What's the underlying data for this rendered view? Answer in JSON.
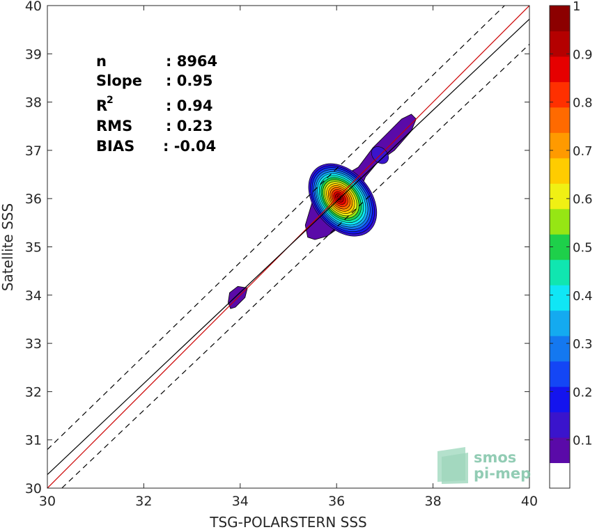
{
  "chart_data": {
    "type": "scatter",
    "subtype": "density-contour",
    "xlabel": "TSG-POLARSTERN SSS",
    "ylabel": "Satellite SSS",
    "xlim": [
      30,
      40
    ],
    "ylim": [
      30,
      40
    ],
    "xticks": [
      30,
      32,
      34,
      36,
      38,
      40
    ],
    "yticks": [
      30,
      31,
      32,
      33,
      34,
      35,
      36,
      37,
      38,
      39,
      40
    ],
    "grid": false,
    "stats": [
      {
        "label": "n",
        "value": ": 8964"
      },
      {
        "label": "Slope",
        "value": ": 0.95"
      },
      {
        "label": "R",
        "sup": "2",
        "value": ": 0.94"
      },
      {
        "label": "RMS",
        "value": ": 0.23"
      },
      {
        "label": "BIAS",
        "value": ": -0.04"
      }
    ],
    "lines": [
      {
        "name": "one-to-one",
        "color": "#cc0000",
        "style": "solid",
        "x": [
          30,
          40
        ],
        "y": [
          30,
          40
        ]
      },
      {
        "name": "regression",
        "color": "#000000",
        "style": "solid",
        "x": [
          30,
          40
        ],
        "y": [
          30.28,
          39.72
        ]
      },
      {
        "name": "upper-bound",
        "color": "#000000",
        "style": "dashed",
        "x": [
          30,
          40
        ],
        "y": [
          30.8,
          40.5
        ]
      },
      {
        "name": "lower-bound",
        "color": "#000000",
        "style": "dashed",
        "x": [
          30.3,
          40
        ],
        "y": [
          30,
          39.2
        ]
      }
    ],
    "density_peak": {
      "x": 36.05,
      "y": 36.02
    },
    "colorbar": {
      "ticks": [
        0.1,
        0.2,
        0.3,
        0.4,
        0.5,
        0.6,
        0.7,
        0.8,
        0.9,
        1
      ],
      "tick_labels": [
        "0.1",
        "0.2",
        "0.3",
        "0.4",
        "0.5",
        "0.6",
        "0.7",
        "0.8",
        "0.9",
        "1"
      ],
      "range": [
        0,
        1
      ],
      "colors": [
        "#ffffff",
        "#5a0aa8",
        "#3a14cc",
        "#1414ee",
        "#1446f5",
        "#1478f0",
        "#14aaf0",
        "#10e6f5",
        "#10e6b0",
        "#1ed04a",
        "#96e614",
        "#f0f014",
        "#ffcc00",
        "#ff9a00",
        "#ff6a00",
        "#ff3000",
        "#e60000",
        "#b40000",
        "#8c0000"
      ]
    },
    "logo": {
      "line1": "smos",
      "line2": "pi-mep"
    }
  }
}
